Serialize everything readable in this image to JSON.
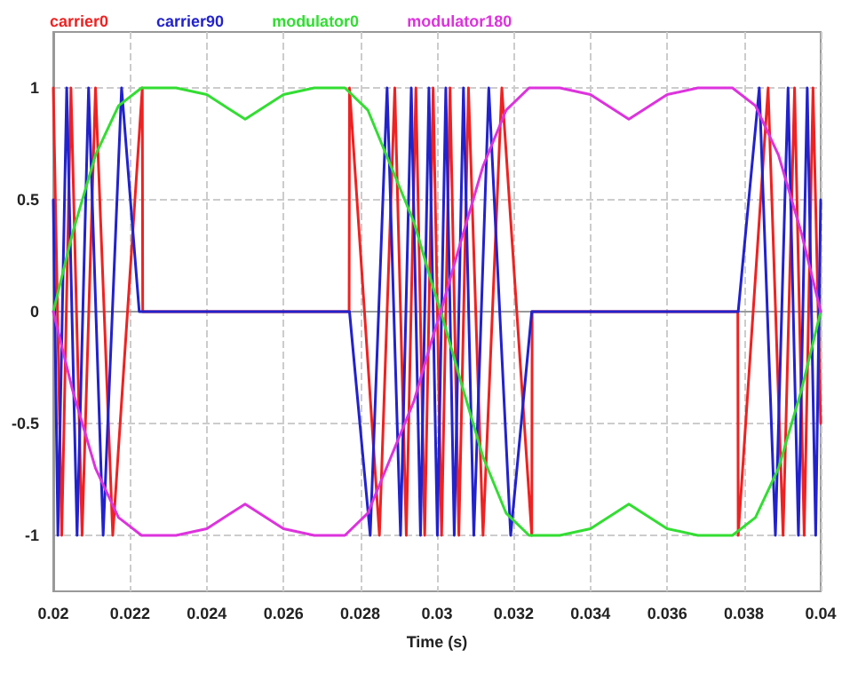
{
  "chart_data": {
    "type": "line",
    "xlabel": "Time (s)",
    "xlim": [
      0.02,
      0.04
    ],
    "xticks": [
      0.02,
      0.022,
      0.024,
      0.026,
      0.028,
      0.03,
      0.032,
      0.034,
      0.036,
      0.038,
      0.04
    ],
    "ylim": [
      -1.25,
      1.25
    ],
    "yticks": [
      -1,
      -0.5,
      0,
      0.5,
      1
    ],
    "grid": true,
    "legend": "top left",
    "marker": "none",
    "line_style": "solid",
    "series": [
      {
        "name": "carrier0",
        "color": "#ee2222",
        "x": [
          0.02,
          0.02022,
          0.02046,
          0.02075,
          0.0211,
          0.02155,
          0.02232,
          0.02233,
          0.02771,
          0.02772,
          0.0285,
          0.0289,
          0.0292,
          0.02945,
          0.02968,
          0.0299,
          0.03012,
          0.03034,
          0.03057,
          0.03082,
          0.0312,
          0.03169,
          0.03247,
          0.03248,
          0.03784,
          0.03785,
          0.03863,
          0.03902,
          0.03932,
          0.03957,
          0.0398,
          0.04
        ],
        "values": [
          1,
          -1,
          1,
          -1,
          1,
          -1,
          1,
          0,
          0,
          1,
          -1,
          1,
          -1,
          1,
          -1,
          1,
          -1,
          1,
          -1,
          1,
          -1,
          1,
          -1,
          0,
          0,
          -1,
          1,
          -1,
          1,
          -1,
          1,
          -0.5
        ]
      },
      {
        "name": "carrier90",
        "color": "#2222cc",
        "x": [
          0.02,
          0.02012,
          0.02035,
          0.02062,
          0.02092,
          0.0213,
          0.02178,
          0.02224,
          0.02772,
          0.02826,
          0.0287,
          0.02905,
          0.02933,
          0.02957,
          0.02979,
          0.03001,
          0.03023,
          0.03045,
          0.03069,
          0.03096,
          0.03135,
          0.03192,
          0.03247,
          0.03785,
          0.0384,
          0.03882,
          0.03915,
          0.03942,
          0.03965,
          0.03987,
          0.04
        ],
        "values": [
          0.5,
          -1,
          1,
          -1,
          1,
          -1,
          1,
          0,
          0,
          -1,
          1,
          -1,
          1,
          -1,
          1,
          -1,
          1,
          -1,
          1,
          -1,
          1,
          -1,
          0,
          0,
          1,
          -1,
          1,
          -1,
          1,
          -1,
          0.5
        ]
      },
      {
        "name": "modulator0",
        "color": "#33dd33",
        "x": [
          0.02,
          0.0205,
          0.0211,
          0.0217,
          0.0223,
          0.0232,
          0.024,
          0.025,
          0.026,
          0.0268,
          0.0276,
          0.0282,
          0.0288,
          0.0294,
          0.02986,
          0.0301,
          0.0306,
          0.0312,
          0.0318,
          0.0324,
          0.0332,
          0.034,
          0.035,
          0.036,
          0.0368,
          0.0377,
          0.0383,
          0.0389,
          0.0395,
          0.04
        ],
        "values": [
          0,
          0.35,
          0.7,
          0.92,
          1,
          1,
          0.97,
          0.86,
          0.97,
          1,
          1,
          0.9,
          0.65,
          0.4,
          0.13,
          0,
          -0.3,
          -0.65,
          -0.9,
          -1,
          -1,
          -0.97,
          -0.86,
          -0.97,
          -1,
          -1,
          -0.92,
          -0.7,
          -0.35,
          0
        ]
      },
      {
        "name": "modulator180",
        "color": "#dd33dd",
        "x": [
          0.02,
          0.0205,
          0.0211,
          0.0217,
          0.0223,
          0.0232,
          0.024,
          0.025,
          0.026,
          0.0268,
          0.0276,
          0.0282,
          0.0288,
          0.0294,
          0.02986,
          0.0301,
          0.0306,
          0.0312,
          0.0318,
          0.0324,
          0.0332,
          0.034,
          0.035,
          0.036,
          0.0368,
          0.0377,
          0.0383,
          0.0389,
          0.0395,
          0.04
        ],
        "values": [
          0,
          -0.35,
          -0.7,
          -0.92,
          -1,
          -1,
          -0.97,
          -0.86,
          -0.97,
          -1,
          -1,
          -0.9,
          -0.65,
          -0.4,
          -0.13,
          0,
          0.3,
          0.65,
          0.9,
          1,
          1,
          0.97,
          0.86,
          0.97,
          1,
          1,
          0.92,
          0.7,
          0.35,
          0
        ]
      }
    ]
  }
}
